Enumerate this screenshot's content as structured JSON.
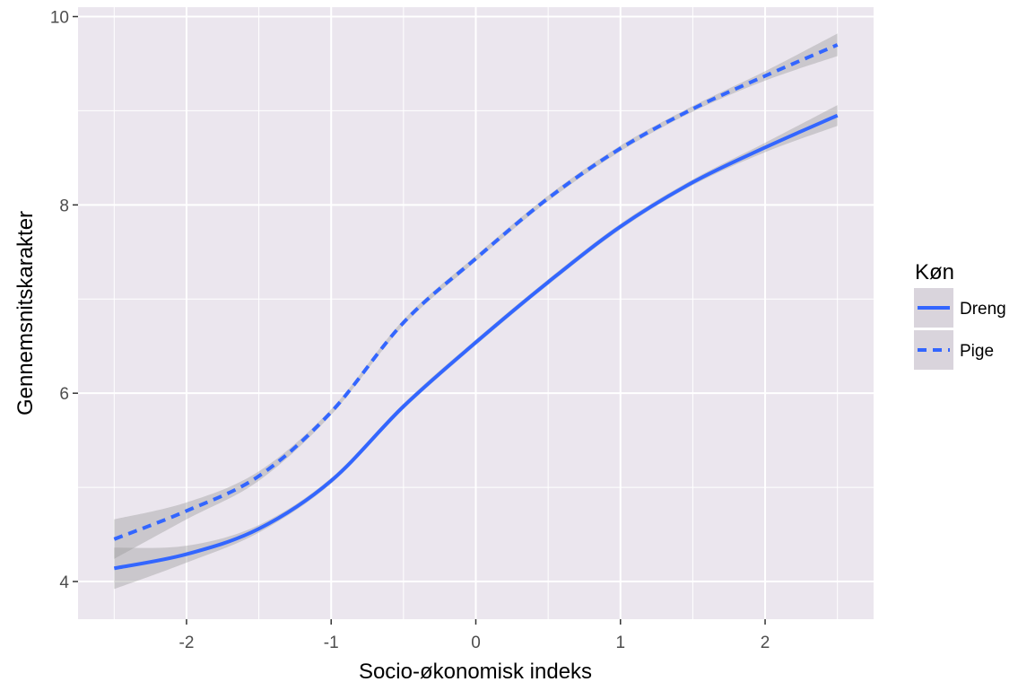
{
  "chart_data": {
    "type": "line",
    "title": "",
    "xlabel": "Socio-økonomisk indeks",
    "ylabel": "Gennemsnitskarakter",
    "xlim": [
      -2.75,
      2.75
    ],
    "ylim": [
      3.6,
      10.1
    ],
    "x_ticks": [
      -2,
      -1,
      0,
      1,
      2
    ],
    "x_tick_labels": [
      "-2",
      "-1",
      "0",
      "1",
      "2"
    ],
    "y_ticks": [
      4,
      6,
      8,
      10
    ],
    "y_tick_labels": [
      "4",
      "6",
      "8",
      "10"
    ],
    "grid": true,
    "legend": {
      "title": "Køn",
      "position": "right",
      "entries": [
        "Dreng",
        "Pige"
      ]
    },
    "colors": {
      "line": "#3366FF",
      "ribbon": "#999999",
      "panel": "#EBE6EE",
      "grid": "#FFFFFF",
      "legend_key": "#D9D4DC"
    },
    "x": [
      -2.5,
      -2.0,
      -1.5,
      -1.0,
      -0.5,
      0.0,
      0.5,
      1.0,
      1.5,
      2.0,
      2.5
    ],
    "series": [
      {
        "name": "Dreng",
        "line_style": "solid",
        "values": [
          4.14,
          4.29,
          4.56,
          5.07,
          5.86,
          6.54,
          7.18,
          7.77,
          8.24,
          8.61,
          8.95
        ],
        "lower": [
          3.92,
          4.2,
          4.52,
          5.04,
          5.83,
          6.51,
          7.15,
          7.74,
          8.21,
          8.56,
          8.84
        ],
        "upper": [
          4.36,
          4.38,
          4.6,
          5.1,
          5.89,
          6.57,
          7.21,
          7.8,
          8.27,
          8.66,
          9.06
        ]
      },
      {
        "name": "Pige",
        "line_style": "dashed",
        "values": [
          4.45,
          4.75,
          5.12,
          5.8,
          6.75,
          7.43,
          8.07,
          8.6,
          9.02,
          9.37,
          9.7
        ],
        "lower": [
          4.24,
          4.66,
          5.07,
          5.77,
          6.72,
          7.4,
          8.04,
          8.57,
          8.99,
          9.32,
          9.58
        ],
        "upper": [
          4.66,
          4.84,
          5.17,
          5.83,
          6.78,
          7.46,
          8.1,
          8.63,
          9.05,
          9.42,
          9.82
        ]
      }
    ]
  }
}
